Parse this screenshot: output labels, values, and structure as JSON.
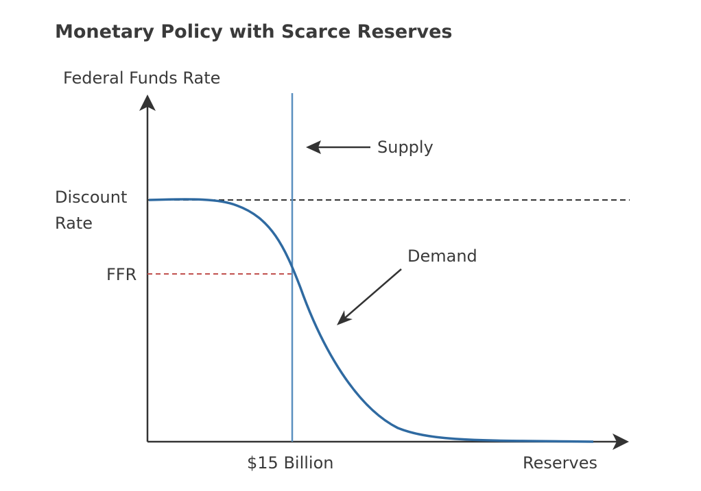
{
  "title": "Monetary Policy with Scarce Reserves",
  "axes": {
    "y_label": "Federal Funds Rate",
    "x_label": "Reserves"
  },
  "levels": {
    "discount_rate_line1": "Discount",
    "discount_rate_line2": "Rate",
    "ffr": "FFR"
  },
  "x_marker": "$15 Billion",
  "curves": {
    "supply": "Supply",
    "demand": "Demand"
  },
  "colors": {
    "curve": "#2f6aa1",
    "supply_line": "#5a8fbf",
    "discount_line": "#333333",
    "ffr_line": "#c0504d",
    "axis": "#333333",
    "text": "#3a3a3a"
  }
}
